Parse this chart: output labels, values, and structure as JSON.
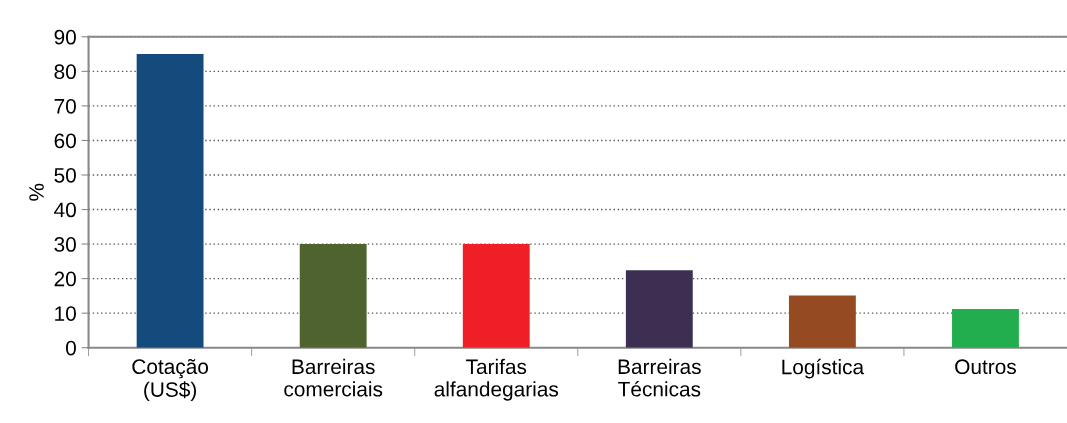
{
  "chart_data": {
    "type": "bar",
    "ylabel": "%",
    "categories": [
      "Cotação\n(US$)",
      "Barreiras\ncomerciais",
      "Tarifas\nalfandegarias",
      "Barreiras\nTécnicas",
      "Logística",
      "Outros"
    ],
    "values": [
      85,
      30,
      30,
      22.4,
      15.1,
      11.2
    ],
    "colors": [
      "#154a7c",
      "#4e632d",
      "#ee1f25",
      "#3d2f52",
      "#954a22",
      "#22ae4f"
    ],
    "ylim": [
      0,
      90
    ],
    "yticks": [
      0,
      10,
      20,
      30,
      40,
      50,
      60,
      70,
      80,
      90
    ],
    "grid": "y",
    "legend": false
  }
}
